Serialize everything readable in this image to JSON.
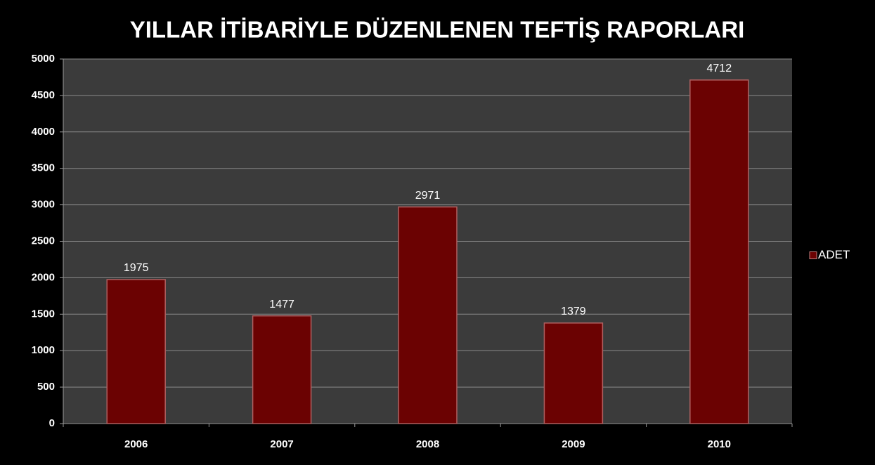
{
  "chart_data": {
    "type": "bar",
    "title": "YILLAR İTİBARİYLE DÜZENLENEN TEFTİŞ RAPORLARI",
    "categories": [
      "2006",
      "2007",
      "2008",
      "2009",
      "2010"
    ],
    "series": [
      {
        "name": "ADET",
        "color": "#6b0202",
        "values": [
          1975,
          1477,
          2971,
          1379,
          4712
        ]
      }
    ],
    "ylim": [
      0,
      5000
    ],
    "yticks": [
      0,
      500,
      1000,
      1500,
      2000,
      2500,
      3000,
      3500,
      4000,
      4500,
      5000
    ],
    "grid": true,
    "legend": "right"
  }
}
